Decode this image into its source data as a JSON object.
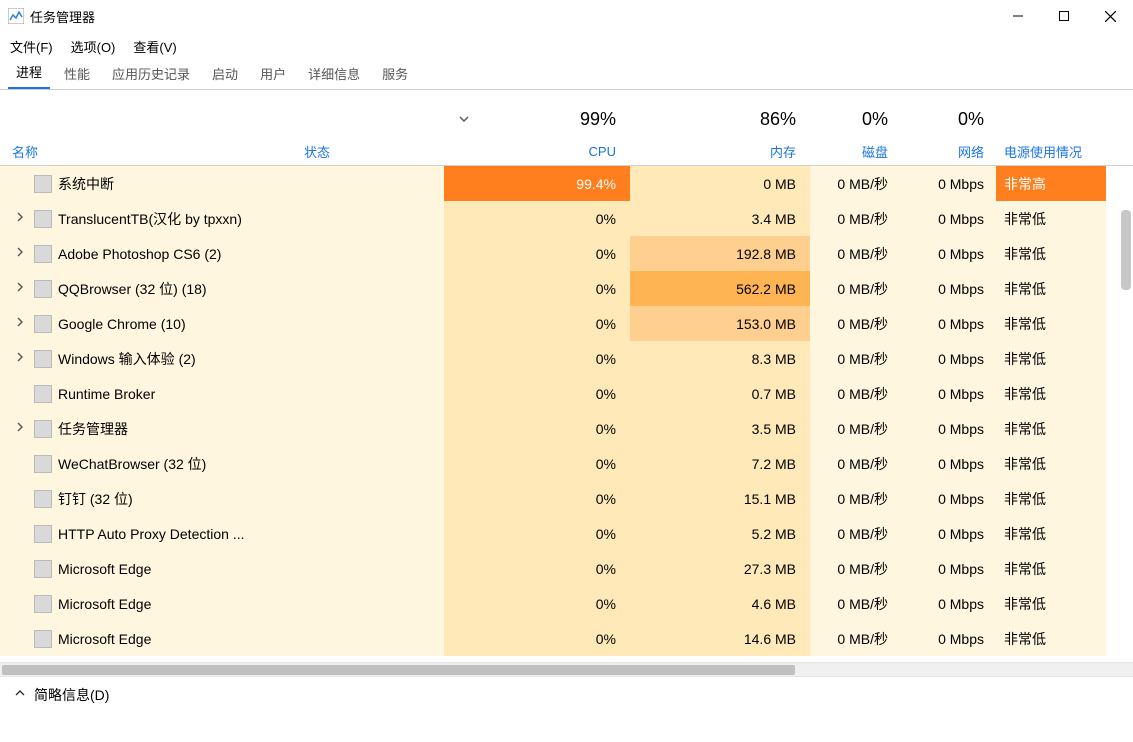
{
  "window": {
    "title": "任务管理器"
  },
  "menu": {
    "file": "文件(F)",
    "options": "选项(O)",
    "view": "查看(V)"
  },
  "tabs": {
    "processes": "进程",
    "performance": "性能",
    "app_history": "应用历史记录",
    "startup": "启动",
    "users": "用户",
    "details": "详细信息",
    "services": "服务"
  },
  "columns": {
    "name": "名称",
    "status": "状态",
    "cpu_pct": "99%",
    "cpu_label": "CPU",
    "mem_pct": "86%",
    "mem_label": "内存",
    "disk_pct": "0%",
    "disk_label": "磁盘",
    "net_pct": "0%",
    "net_label": "网络",
    "power_label": "电源使用情况"
  },
  "colors": {
    "heat_high": "#ff7f1f",
    "heat_med_high": "#ffb454",
    "heat_med": "#ffcf8f",
    "heat_low": "#ffe9b8",
    "heat_vlow": "#fff6df",
    "link_blue": "#1a73e8"
  },
  "footer": {
    "fewer_details": "简略信息(D)"
  },
  "processes": [
    {
      "expandable": false,
      "name": "系统中断",
      "cpu": "99.4%",
      "mem": "0 MB",
      "disk": "0 MB/秒",
      "net": "0 Mbps",
      "power": "非常高",
      "bg_name": "#fff6df",
      "bg_cpu": "#ff7f1f",
      "cpu_color": "#ffffff",
      "bg_mem": "#ffe9b8",
      "bg_disk": "#fff6df",
      "bg_net": "#fff6df",
      "bg_power": "#ff7f1f",
      "power_color": "#ffffff"
    },
    {
      "expandable": true,
      "name": "TranslucentTB(汉化 by tpxxn)",
      "cpu": "0%",
      "mem": "3.4 MB",
      "disk": "0 MB/秒",
      "net": "0 Mbps",
      "power": "非常低",
      "bg_name": "#fff6df",
      "bg_cpu": "#ffe9b8",
      "bg_mem": "#ffe9b8",
      "bg_disk": "#fff6df",
      "bg_net": "#fff6df",
      "bg_power": "#fff6df"
    },
    {
      "expandable": true,
      "name": "Adobe Photoshop CS6 (2)",
      "cpu": "0%",
      "mem": "192.8 MB",
      "disk": "0 MB/秒",
      "net": "0 Mbps",
      "power": "非常低",
      "bg_name": "#fff6df",
      "bg_cpu": "#ffe9b8",
      "bg_mem": "#ffcf8f",
      "bg_disk": "#fff6df",
      "bg_net": "#fff6df",
      "bg_power": "#fff6df"
    },
    {
      "expandable": true,
      "name": "QQBrowser (32 位) (18)",
      "cpu": "0%",
      "mem": "562.2 MB",
      "disk": "0 MB/秒",
      "net": "0 Mbps",
      "power": "非常低",
      "bg_name": "#fff6df",
      "bg_cpu": "#ffe9b8",
      "bg_mem": "#ffb454",
      "bg_disk": "#fff6df",
      "bg_net": "#fff6df",
      "bg_power": "#fff6df"
    },
    {
      "expandable": true,
      "name": "Google Chrome (10)",
      "cpu": "0%",
      "mem": "153.0 MB",
      "disk": "0 MB/秒",
      "net": "0 Mbps",
      "power": "非常低",
      "bg_name": "#fff6df",
      "bg_cpu": "#ffe9b8",
      "bg_mem": "#ffcf8f",
      "bg_disk": "#fff6df",
      "bg_net": "#fff6df",
      "bg_power": "#fff6df"
    },
    {
      "expandable": true,
      "name": "Windows 输入体验 (2)",
      "cpu": "0%",
      "mem": "8.3 MB",
      "disk": "0 MB/秒",
      "net": "0 Mbps",
      "power": "非常低",
      "bg_name": "#fff6df",
      "bg_cpu": "#ffe9b8",
      "bg_mem": "#ffe9b8",
      "bg_disk": "#fff6df",
      "bg_net": "#fff6df",
      "bg_power": "#fff6df"
    },
    {
      "expandable": false,
      "name": "Runtime Broker",
      "cpu": "0%",
      "mem": "0.7 MB",
      "disk": "0 MB/秒",
      "net": "0 Mbps",
      "power": "非常低",
      "bg_name": "#fff6df",
      "bg_cpu": "#ffe9b8",
      "bg_mem": "#ffe9b8",
      "bg_disk": "#fff6df",
      "bg_net": "#fff6df",
      "bg_power": "#fff6df"
    },
    {
      "expandable": true,
      "name": "任务管理器",
      "cpu": "0%",
      "mem": "3.5 MB",
      "disk": "0 MB/秒",
      "net": "0 Mbps",
      "power": "非常低",
      "bg_name": "#fff6df",
      "bg_cpu": "#ffe9b8",
      "bg_mem": "#ffe9b8",
      "bg_disk": "#fff6df",
      "bg_net": "#fff6df",
      "bg_power": "#fff6df"
    },
    {
      "expandable": false,
      "name": "WeChatBrowser (32 位)",
      "cpu": "0%",
      "mem": "7.2 MB",
      "disk": "0 MB/秒",
      "net": "0 Mbps",
      "power": "非常低",
      "bg_name": "#fff6df",
      "bg_cpu": "#ffe9b8",
      "bg_mem": "#ffe9b8",
      "bg_disk": "#fff6df",
      "bg_net": "#fff6df",
      "bg_power": "#fff6df"
    },
    {
      "expandable": false,
      "name": "钉钉 (32 位)",
      "cpu": "0%",
      "mem": "15.1 MB",
      "disk": "0 MB/秒",
      "net": "0 Mbps",
      "power": "非常低",
      "bg_name": "#fff6df",
      "bg_cpu": "#ffe9b8",
      "bg_mem": "#ffe9b8",
      "bg_disk": "#fff6df",
      "bg_net": "#fff6df",
      "bg_power": "#fff6df"
    },
    {
      "expandable": false,
      "name": "HTTP Auto Proxy Detection ...",
      "cpu": "0%",
      "mem": "5.2 MB",
      "disk": "0 MB/秒",
      "net": "0 Mbps",
      "power": "非常低",
      "bg_name": "#fff6df",
      "bg_cpu": "#ffe9b8",
      "bg_mem": "#ffe9b8",
      "bg_disk": "#fff6df",
      "bg_net": "#fff6df",
      "bg_power": "#fff6df"
    },
    {
      "expandable": false,
      "name": "Microsoft Edge",
      "cpu": "0%",
      "mem": "27.3 MB",
      "disk": "0 MB/秒",
      "net": "0 Mbps",
      "power": "非常低",
      "bg_name": "#fff6df",
      "bg_cpu": "#ffe9b8",
      "bg_mem": "#ffe9b8",
      "bg_disk": "#fff6df",
      "bg_net": "#fff6df",
      "bg_power": "#fff6df"
    },
    {
      "expandable": false,
      "name": "Microsoft Edge",
      "cpu": "0%",
      "mem": "4.6 MB",
      "disk": "0 MB/秒",
      "net": "0 Mbps",
      "power": "非常低",
      "bg_name": "#fff6df",
      "bg_cpu": "#ffe9b8",
      "bg_mem": "#ffe9b8",
      "bg_disk": "#fff6df",
      "bg_net": "#fff6df",
      "bg_power": "#fff6df"
    },
    {
      "expandable": false,
      "name": "Microsoft Edge",
      "cpu": "0%",
      "mem": "14.6 MB",
      "disk": "0 MB/秒",
      "net": "0 Mbps",
      "power": "非常低",
      "bg_name": "#fff6df",
      "bg_cpu": "#ffe9b8",
      "bg_mem": "#ffe9b8",
      "bg_disk": "#fff6df",
      "bg_net": "#fff6df",
      "bg_power": "#fff6df"
    }
  ]
}
